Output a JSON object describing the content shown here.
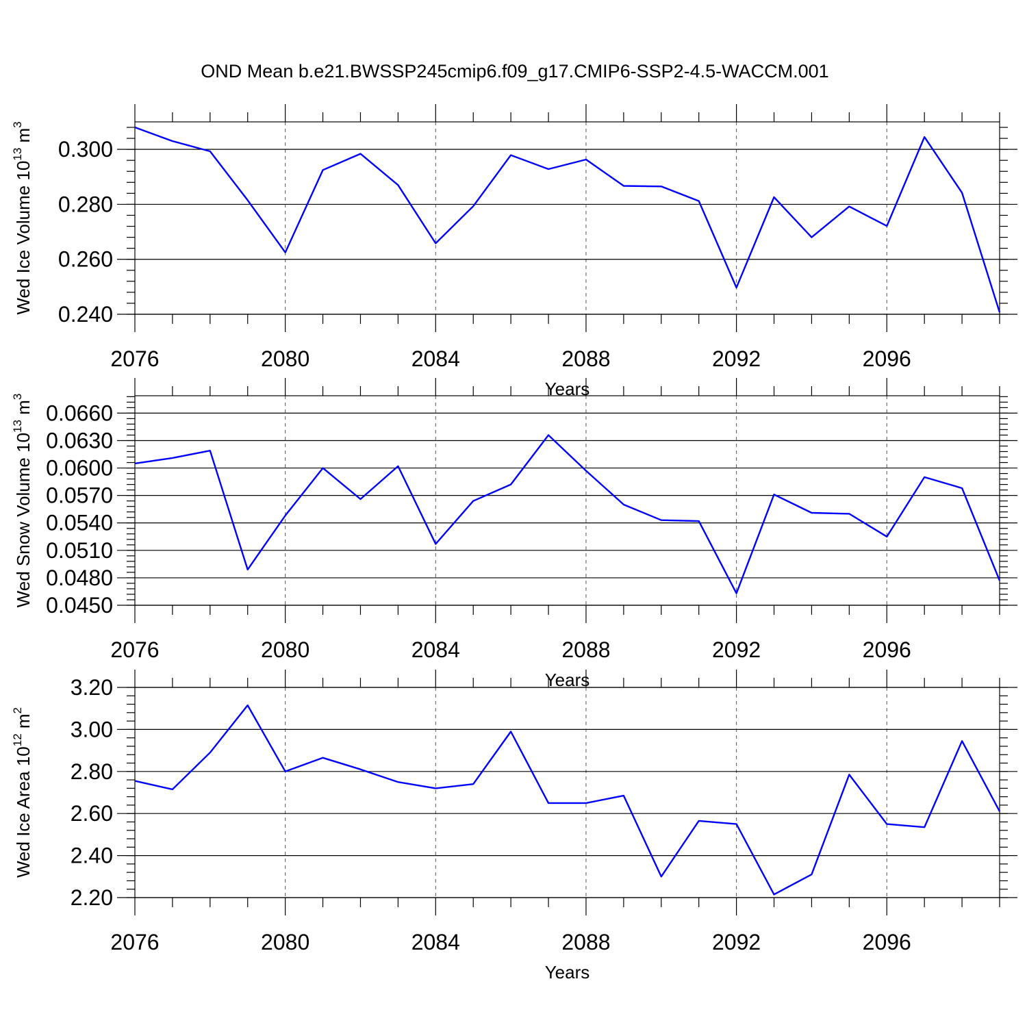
{
  "title": "OND Mean b.e21.BWSSP245cmip6.f09_g17.CMIP6-SSP2-4.5-WACCM.001",
  "colors": {
    "series": "#0000ff",
    "axis": "#000000",
    "grid": "#555555"
  },
  "chart_data": [
    {
      "type": "line",
      "xlabel": "Years",
      "ylabel_parts": [
        "Wed Ice Volume 10",
        "13",
        " m",
        "3"
      ],
      "xlim": [
        2076,
        2099
      ],
      "ylim": [
        0.24,
        0.31
      ],
      "xticks": [
        2076,
        2080,
        2084,
        2088,
        2092,
        2096
      ],
      "yticks": [
        "0.240",
        "0.260",
        "0.280",
        "0.300"
      ],
      "ytick_values": [
        0.24,
        0.26,
        0.28,
        0.3
      ],
      "yminor_step": 0.004,
      "grid": "vertical dashed at major x ticks",
      "x": [
        2076,
        2077,
        2078,
        2079,
        2080,
        2081,
        2082,
        2083,
        2084,
        2085,
        2086,
        2087,
        2088,
        2089,
        2090,
        2091,
        2092,
        2093,
        2094,
        2095,
        2096,
        2097,
        2098,
        2099
      ],
      "values": [
        0.308,
        0.303,
        0.2993,
        0.2815,
        0.2625,
        0.2925,
        0.2984,
        0.287,
        0.2658,
        0.2793,
        0.2979,
        0.2928,
        0.2963,
        0.2867,
        0.2865,
        0.2812,
        0.2497,
        0.2826,
        0.268,
        0.2792,
        0.2721,
        0.3045,
        0.2842,
        0.2407
      ]
    },
    {
      "type": "line",
      "xlabel": "Years",
      "ylabel_parts": [
        "Wed Snow Volume 10",
        "13",
        " m",
        "3"
      ],
      "xlim": [
        2076,
        2099
      ],
      "ylim": [
        0.045,
        0.0679
      ],
      "xticks": [
        2076,
        2080,
        2084,
        2088,
        2092,
        2096
      ],
      "yticks": [
        "0.0450",
        "0.0480",
        "0.0510",
        "0.0540",
        "0.0570",
        "0.0600",
        "0.0630",
        "0.0660"
      ],
      "ytick_values": [
        0.045,
        0.048,
        0.051,
        0.054,
        0.057,
        0.06,
        0.063,
        0.066
      ],
      "yminor_step": 0.0006,
      "grid": "vertical dashed at major x ticks",
      "x": [
        2076,
        2077,
        2078,
        2079,
        2080,
        2081,
        2082,
        2083,
        2084,
        2085,
        2086,
        2087,
        2088,
        2089,
        2090,
        2091,
        2092,
        2093,
        2094,
        2095,
        2096,
        2097,
        2098,
        2099
      ],
      "values": [
        0.0605,
        0.0611,
        0.0619,
        0.0489,
        0.0548,
        0.06,
        0.0566,
        0.0602,
        0.0517,
        0.0564,
        0.0582,
        0.0636,
        0.0597,
        0.056,
        0.0543,
        0.0542,
        0.0463,
        0.0571,
        0.0551,
        0.055,
        0.0525,
        0.059,
        0.0578,
        0.0477
      ]
    },
    {
      "type": "line",
      "xlabel": "Years",
      "ylabel_parts": [
        "Wed Ice Area 10",
        "12",
        " m",
        "2"
      ],
      "xlim": [
        2076,
        2099
      ],
      "ylim": [
        2.2,
        3.2
      ],
      "xticks": [
        2076,
        2080,
        2084,
        2088,
        2092,
        2096
      ],
      "yticks": [
        "2.20",
        "2.40",
        "2.60",
        "2.80",
        "3.00",
        "3.20"
      ],
      "ytick_values": [
        2.2,
        2.4,
        2.6,
        2.8,
        3.0,
        3.2
      ],
      "yminor_step": 0.04,
      "grid": "vertical dashed at major x ticks",
      "x": [
        2076,
        2077,
        2078,
        2079,
        2080,
        2081,
        2082,
        2083,
        2084,
        2085,
        2086,
        2087,
        2088,
        2089,
        2090,
        2091,
        2092,
        2093,
        2094,
        2095,
        2096,
        2097,
        2098,
        2099
      ],
      "values": [
        2.755,
        2.715,
        2.89,
        3.115,
        2.8,
        2.865,
        2.81,
        2.75,
        2.72,
        2.74,
        2.99,
        2.65,
        2.65,
        2.685,
        2.3,
        2.565,
        2.55,
        2.215,
        2.31,
        2.785,
        2.55,
        2.535,
        2.945,
        2.61
      ]
    }
  ]
}
